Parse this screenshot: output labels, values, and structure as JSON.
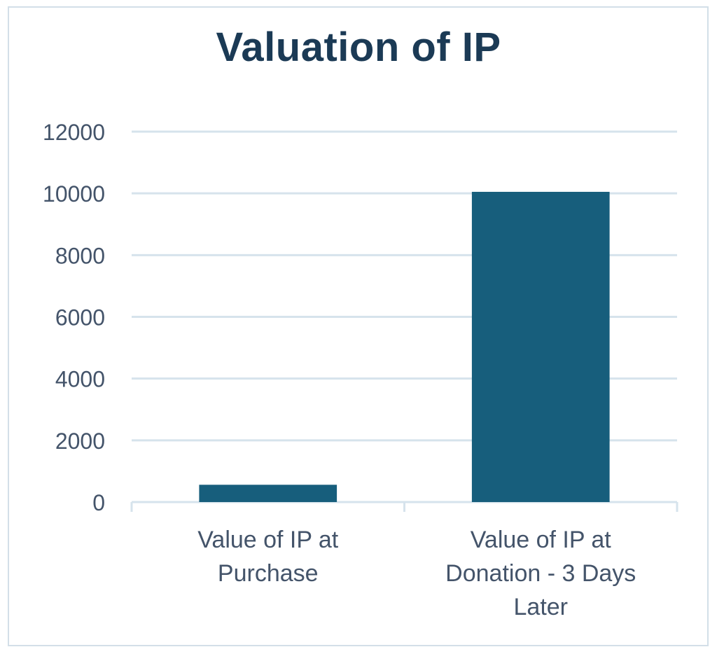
{
  "chart_data": {
    "type": "bar",
    "title": "Valuation of IP",
    "xlabel": "",
    "ylabel": "",
    "categories": [
      [
        "Value of IP at",
        "Purchase"
      ],
      [
        "Value of IP at",
        "Donation - 3 Days",
        "Later"
      ]
    ],
    "values": [
      560,
      10050
    ],
    "ylim": [
      0,
      12000
    ],
    "yticks": [
      "0",
      "2000",
      "4000",
      "6000",
      "8000",
      "10000",
      "12000"
    ],
    "grid": true,
    "legend": "none",
    "colors": {
      "bar": "#175e7c",
      "grid": "#d6e3ec",
      "axis": "#d6e3ec",
      "title": "#1b3a55",
      "text": "#44546a"
    }
  }
}
